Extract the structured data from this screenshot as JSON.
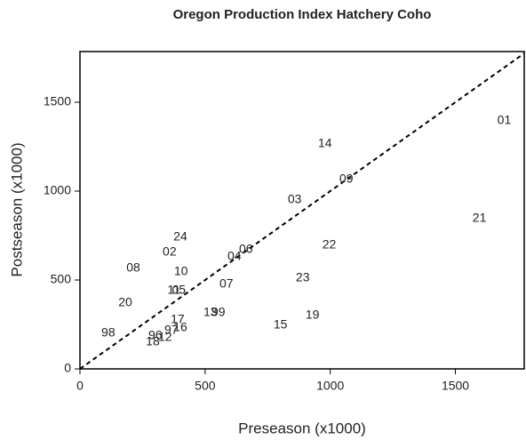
{
  "chart_data": {
    "type": "scatter",
    "title": "Oregon Production Index Hatchery Coho",
    "x_label": "Preseason (x1000)",
    "y_label": "Postseason (x1000)",
    "labels": [
      "01",
      "14",
      "09",
      "03",
      "21",
      "24",
      "22",
      "02",
      "06",
      "04",
      "08",
      "10",
      "23",
      "07",
      "05",
      "11",
      "20",
      "13",
      "99",
      "19",
      "17",
      "15",
      "16",
      "98",
      "97",
      "96",
      "12",
      "18"
    ],
    "x": [
      1695,
      979,
      1064,
      858,
      1596,
      401,
      996,
      358,
      663,
      617,
      213,
      404,
      890,
      585,
      395,
      375,
      181,
      521,
      553,
      929,
      390,
      801,
      401,
      113,
      365,
      301,
      340,
      291
    ],
    "values": [
      1395,
      1265,
      1065,
      950,
      845,
      740,
      695,
      655,
      670,
      630,
      565,
      545,
      510,
      475,
      440,
      440,
      370,
      315,
      315,
      300,
      275,
      245,
      230,
      200,
      215,
      185,
      175,
      150
    ],
    "xlim": [
      0,
      1775
    ],
    "ylim": [
      0,
      1785
    ],
    "xticks": [
      0,
      500,
      1000,
      1500
    ],
    "yticks": [
      0,
      500,
      1000,
      1500
    ],
    "reference_line": true
  }
}
